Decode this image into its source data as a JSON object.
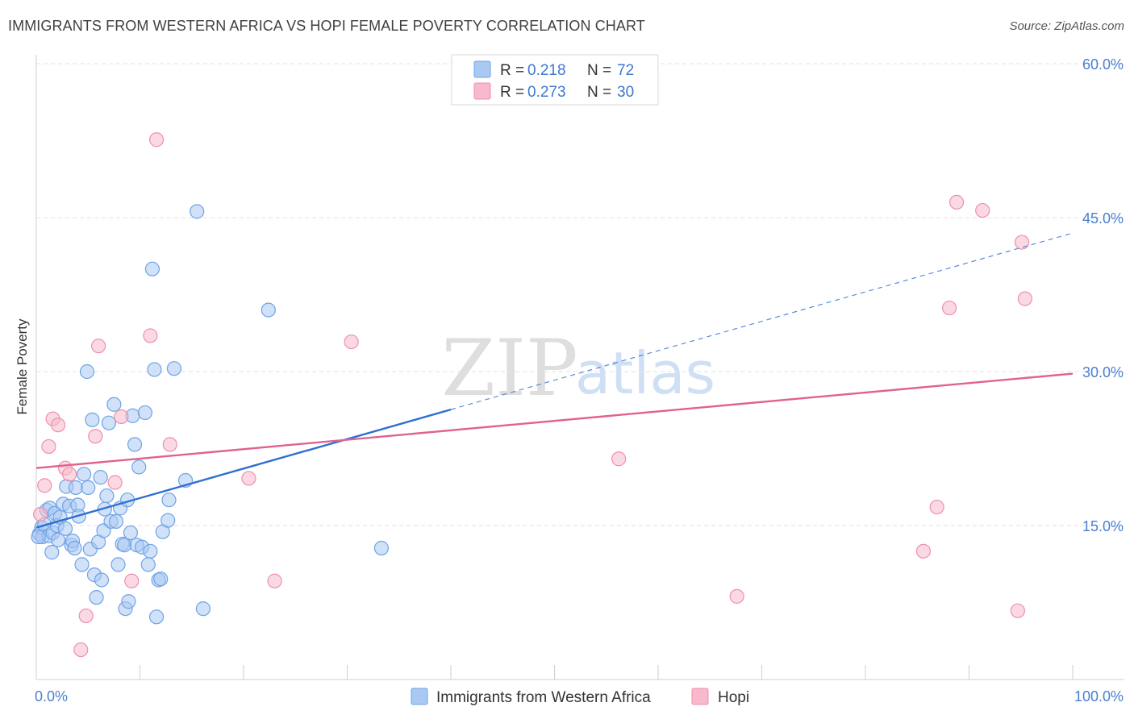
{
  "header": {
    "title": "IMMIGRANTS FROM WESTERN AFRICA VS HOPI FEMALE POVERTY CORRELATION CHART",
    "source": "Source: ZipAtlas.com"
  },
  "watermark": {
    "zip": "ZIP",
    "atlas": "atlas"
  },
  "legend_top": {
    "series": [
      {
        "r_label": "R =",
        "r_value": "0.218",
        "n_label": "N =",
        "n_value": "72",
        "color": "#a9c9f2"
      },
      {
        "r_label": "R =",
        "r_value": "0.273",
        "n_label": "N =",
        "n_value": "30",
        "color": "#f7b9cb"
      }
    ]
  },
  "chart_data": {
    "type": "scatter",
    "title": "IMMIGRANTS FROM WESTERN AFRICA VS HOPI FEMALE POVERTY CORRELATION CHART",
    "xlabel": "",
    "ylabel": "Female Poverty",
    "xlim": [
      0,
      100
    ],
    "ylim": [
      0,
      60
    ],
    "x_tick_labels": [
      {
        "value": 0,
        "label": "0.0%"
      },
      {
        "value": 100,
        "label": "100.0%"
      }
    ],
    "y_tick_labels": [
      {
        "value": 15,
        "label": "15.0%"
      },
      {
        "value": 30,
        "label": "30.0%"
      },
      {
        "value": 45,
        "label": "45.0%"
      },
      {
        "value": 60,
        "label": "60.0%"
      }
    ],
    "grid": true,
    "legend_position": "bottom",
    "series": [
      {
        "name": "Immigrants from Western Africa",
        "color": "#6fa3e6",
        "fill": "#a9c9f2",
        "line_color": "#2f6fd0",
        "trend": {
          "x0": 0,
          "y0": 14.8,
          "x1": 40,
          "y1": 26.3,
          "dash_to_x": 100,
          "dash_to_y": 43.5
        },
        "points": [
          [
            0.3,
            14.2
          ],
          [
            0.5,
            14.8
          ],
          [
            0.6,
            13.9
          ],
          [
            0.8,
            15.1
          ],
          [
            1.0,
            16.5
          ],
          [
            1.2,
            14.0
          ],
          [
            1.3,
            16.7
          ],
          [
            1.5,
            12.4
          ],
          [
            1.6,
            14.3
          ],
          [
            1.8,
            16.2
          ],
          [
            2.0,
            15.0
          ],
          [
            2.1,
            13.6
          ],
          [
            2.3,
            15.8
          ],
          [
            2.6,
            17.1
          ],
          [
            2.8,
            14.7
          ],
          [
            2.9,
            18.8
          ],
          [
            3.2,
            16.9
          ],
          [
            3.4,
            13.1
          ],
          [
            3.5,
            13.5
          ],
          [
            3.7,
            12.8
          ],
          [
            3.8,
            18.7
          ],
          [
            4.0,
            17.0
          ],
          [
            4.1,
            15.9
          ],
          [
            4.4,
            11.2
          ],
          [
            4.6,
            20.0
          ],
          [
            4.9,
            30.0
          ],
          [
            5.0,
            18.7
          ],
          [
            5.2,
            12.7
          ],
          [
            5.4,
            25.3
          ],
          [
            5.6,
            10.2
          ],
          [
            5.8,
            8.0
          ],
          [
            6.0,
            13.4
          ],
          [
            6.2,
            19.7
          ],
          [
            6.3,
            9.7
          ],
          [
            6.5,
            14.5
          ],
          [
            6.6,
            16.6
          ],
          [
            6.8,
            17.9
          ],
          [
            7.0,
            25.0
          ],
          [
            7.2,
            15.4
          ],
          [
            7.5,
            26.8
          ],
          [
            7.7,
            15.4
          ],
          [
            7.9,
            11.2
          ],
          [
            8.1,
            16.7
          ],
          [
            8.3,
            13.2
          ],
          [
            8.5,
            13.1
          ],
          [
            8.6,
            6.9
          ],
          [
            8.8,
            17.5
          ],
          [
            8.9,
            7.6
          ],
          [
            9.1,
            14.3
          ],
          [
            9.3,
            25.7
          ],
          [
            9.5,
            22.9
          ],
          [
            9.7,
            13.1
          ],
          [
            9.9,
            20.7
          ],
          [
            10.2,
            12.9
          ],
          [
            10.5,
            26.0
          ],
          [
            10.8,
            11.2
          ],
          [
            11.0,
            12.5
          ],
          [
            11.2,
            40.0
          ],
          [
            11.4,
            30.2
          ],
          [
            11.6,
            6.1
          ],
          [
            11.8,
            9.7
          ],
          [
            12.0,
            9.8
          ],
          [
            12.2,
            14.4
          ],
          [
            12.7,
            15.5
          ],
          [
            12.8,
            17.5
          ],
          [
            13.3,
            30.3
          ],
          [
            14.4,
            19.4
          ],
          [
            15.5,
            45.6
          ],
          [
            16.1,
            6.9
          ],
          [
            22.4,
            36.0
          ],
          [
            33.3,
            12.8
          ],
          [
            0.2,
            13.9
          ]
        ]
      },
      {
        "name": "Hopi",
        "color": "#ef8fae",
        "fill": "#f7b9cb",
        "line_color": "#e0628f",
        "trend": {
          "x0": 0,
          "y0": 20.6,
          "x1": 100,
          "y1": 29.8
        },
        "points": [
          [
            0.4,
            16.1
          ],
          [
            0.8,
            18.9
          ],
          [
            1.2,
            22.7
          ],
          [
            1.6,
            25.4
          ],
          [
            2.1,
            24.8
          ],
          [
            2.8,
            20.6
          ],
          [
            3.2,
            20.0
          ],
          [
            4.3,
            2.9
          ],
          [
            4.8,
            6.2
          ],
          [
            5.7,
            23.7
          ],
          [
            6.0,
            32.5
          ],
          [
            7.6,
            19.2
          ],
          [
            8.2,
            25.6
          ],
          [
            9.2,
            9.6
          ],
          [
            11.0,
            33.5
          ],
          [
            11.6,
            52.6
          ],
          [
            12.9,
            22.9
          ],
          [
            20.5,
            19.6
          ],
          [
            23.0,
            9.6
          ],
          [
            30.4,
            32.9
          ],
          [
            56.2,
            21.5
          ],
          [
            67.6,
            8.1
          ],
          [
            85.6,
            12.5
          ],
          [
            86.9,
            16.8
          ],
          [
            88.1,
            36.2
          ],
          [
            88.8,
            46.5
          ],
          [
            91.3,
            45.7
          ],
          [
            94.7,
            6.7
          ],
          [
            95.1,
            42.6
          ],
          [
            95.4,
            37.1
          ]
        ]
      }
    ]
  }
}
